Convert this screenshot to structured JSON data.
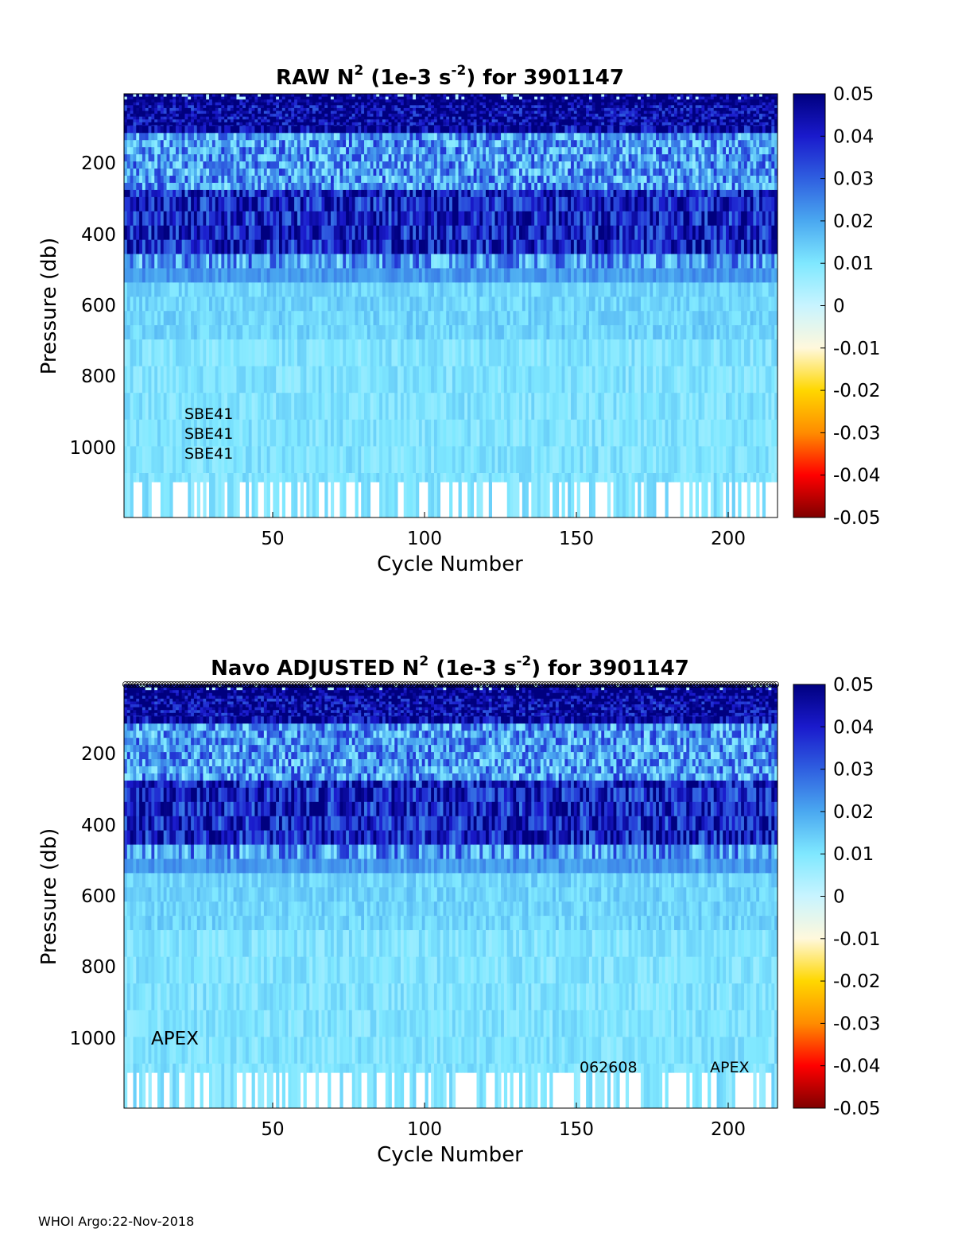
{
  "footer": "WHOI Argo:22-Nov-2018",
  "colorbar": {
    "ticks": [
      "0.05",
      "0.04",
      "0.03",
      "0.02",
      "0.01",
      "0",
      "-0.01",
      "-0.02",
      "-0.03",
      "-0.04",
      "-0.05"
    ],
    "range": [
      -0.05,
      0.05
    ],
    "colormap": [
      "#7f0000",
      "#ff0000",
      "#ff8c00",
      "#ffd700",
      "#fff8dc",
      "#c8f4ff",
      "#7fe8ff",
      "#4aa8f0",
      "#2f5fe0",
      "#1a1acc",
      "#00007f"
    ]
  },
  "chart_data": [
    {
      "type": "heatmap",
      "title_main": "RAW N",
      "title_sup1": "2",
      "title_mid": " (1e-3 s",
      "title_sup2": "-2",
      "title_end": ") for 3901147",
      "xlabel": "Cycle Number",
      "ylabel": "Pressure (db)",
      "x_ticks": [
        "50",
        "100",
        "150",
        "200"
      ],
      "y_ticks": [
        "200",
        "400",
        "600",
        "800",
        "1000"
      ],
      "xlim": [
        1,
        215
      ],
      "ylim": [
        10,
        1200
      ],
      "annotations": [
        "SBE41",
        "SBE41",
        "SBE41"
      ],
      "seed": 7
    },
    {
      "type": "heatmap",
      "title_main": "Navo  ADJUSTED N",
      "title_sup1": "2",
      "title_mid": " (1e-3 s",
      "title_sup2": "-2",
      "title_end": ") for 3901147",
      "xlabel": "Cycle Number",
      "ylabel": "Pressure (db)",
      "x_ticks": [
        "50",
        "100",
        "150",
        "200"
      ],
      "y_ticks": [
        "200",
        "400",
        "600",
        "800",
        "1000"
      ],
      "xlim": [
        1,
        215
      ],
      "ylim": [
        10,
        1200
      ],
      "annotations": [
        "APEX",
        "062608",
        "APEX"
      ],
      "seed": 11
    }
  ]
}
